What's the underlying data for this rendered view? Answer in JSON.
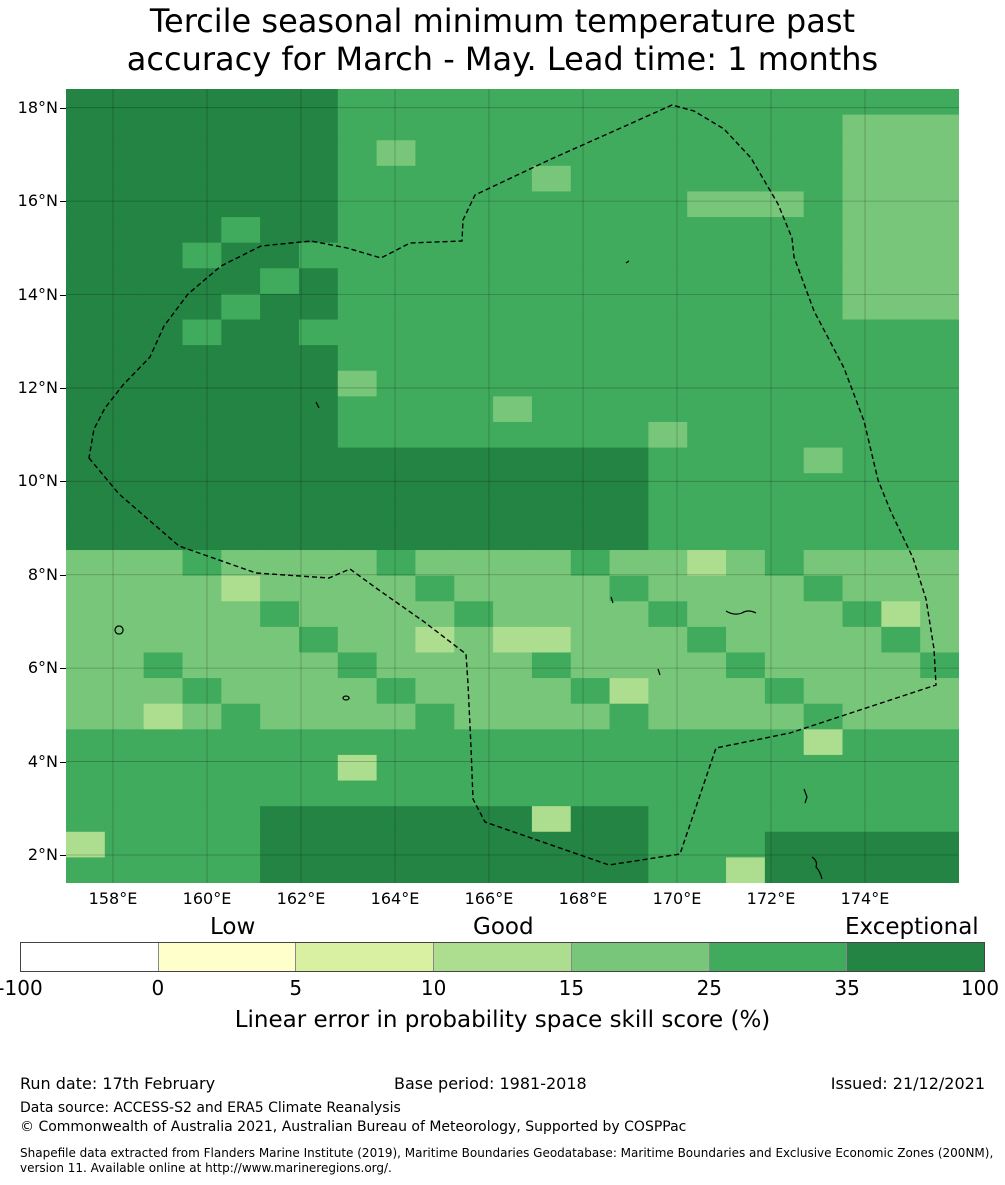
{
  "title": {
    "line1": "Tercile seasonal minimum temperature past",
    "line2": "accuracy for March - May. Lead time: 1 months"
  },
  "map": {
    "lat_range": [
      1.4,
      18.4
    ],
    "lon_range": [
      157.0,
      176.0
    ],
    "lat_ticks": [
      "18°N",
      "16°N",
      "14°N",
      "12°N",
      "10°N",
      "8°N",
      "6°N",
      "4°N",
      "2°N"
    ],
    "lon_ticks": [
      "158°E",
      "160°E",
      "162°E",
      "164°E",
      "166°E",
      "168°E",
      "170°E",
      "172°E",
      "174°E"
    ],
    "boundary_color": "#000000",
    "grid_cells": "0.83 x 0.55 degree cells shaded by skill class"
  },
  "colorbar": {
    "words": [
      "Low",
      "Good",
      "Exceptional"
    ],
    "ticks": [
      "-100",
      "0",
      "5",
      "10",
      "15",
      "25",
      "35",
      "100"
    ],
    "colors": [
      "#ffffff",
      "#ffffcc",
      "#d9f0a3",
      "#addd8e",
      "#78c679",
      "#41ab5d",
      "#238443"
    ],
    "label": "Linear error in probability space skill score (%)"
  },
  "footer": {
    "run_date": "Run date: 17th February",
    "base_period": "Base period: 1981-2018",
    "issued": "Issued: 21/12/2021",
    "data_source": "Data source: ACCESS-S2 and ERA5 Climate Reanalysis",
    "copyright": "© Commonwealth of Australia 2021, Australian Bureau of Meteorology, Supported by COSPPac",
    "shapefile": "Shapefile data extracted from Flanders Marine Institute (2019), Maritime Boundaries Geodatabase: Maritime Boundaries and Exclusive Economic Zones (200NM), version 11. Available online at http://www.marineregions.org/."
  }
}
